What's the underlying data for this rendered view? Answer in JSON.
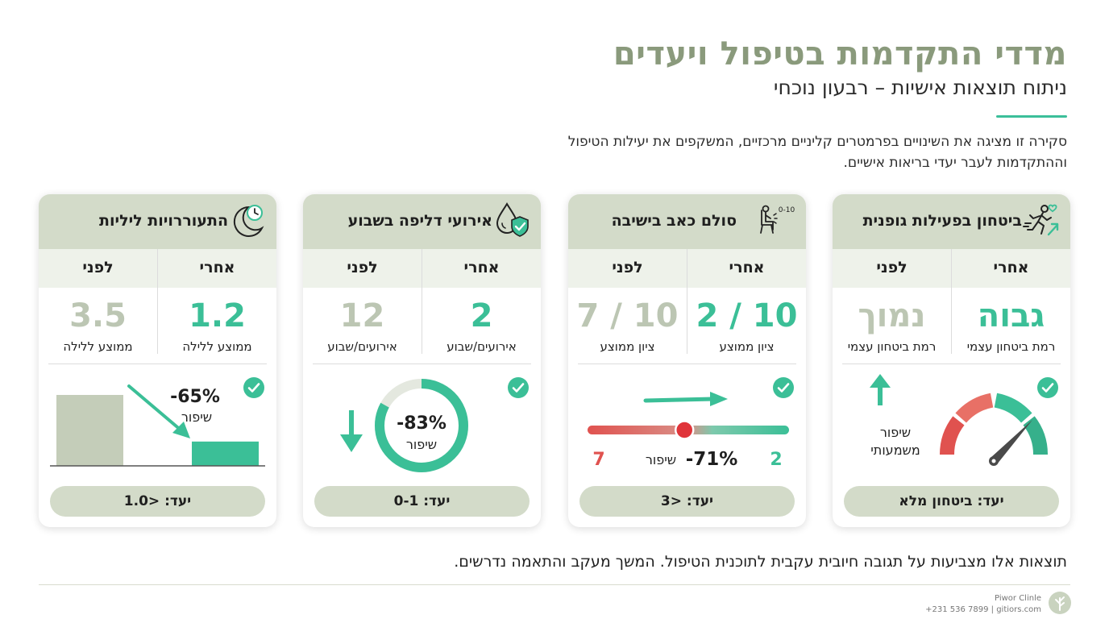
{
  "header": {
    "title": "מדדי התקדמות בטיפול ויעדים",
    "subtitle": "ניתוח תוצאות אישיות – רבעון נוכחי",
    "intro": "סקירה זו מציגה את השינויים בפרמטרים קליניים מרכזיים, המשקפים את יעילות הטיפול וההתקדמות לעבר יעדי בריאות אישיים."
  },
  "colors": {
    "title": "#8a9a7c",
    "accent": "#3cbf9a",
    "card_header": "#d3dbc9",
    "before_value": "#bcc6b3",
    "pain_red": "#e0524f"
  },
  "cards": [
    {
      "title": "ביטחון בפעילות גופנית",
      "icon": "running-person-heart-icon",
      "after_label": "אחרי",
      "before_label": "לפני",
      "after_value": "גבוה",
      "before_value": "נמוך",
      "after_unit": "רמת ביטחון עצמי",
      "before_unit": "רמת ביטחון עצמי",
      "improvement_text": "שיפור משמעותי",
      "gauge_level": 0.8,
      "goal": "יעד: ביטחון מלא"
    },
    {
      "title": "סולם כאב בישיבה",
      "icon": "seated-person-pain-scale-icon",
      "icon_text": "0-10",
      "after_label": "אחרי",
      "before_label": "לפני",
      "after_value": "2 / 10",
      "before_value": "7 / 10",
      "after_unit": "ציון ממוצע",
      "before_unit": "ציון ממוצע",
      "improvement_percent": "-71%",
      "improvement_label": "שיפור",
      "scale_start": "7",
      "scale_end": "2",
      "slider_position": 0.48,
      "goal": "יעד: <3"
    },
    {
      "title": "אירועי דליפה בשבוע",
      "icon": "droplet-shield-icon",
      "after_label": "אחרי",
      "before_label": "לפני",
      "after_value": "2",
      "before_value": "12",
      "after_unit": "אירועים/שבוע",
      "before_unit": "אירועים/שבוע",
      "improvement_percent": "-83%",
      "improvement_label": "שיפור",
      "donut_fill": 0.83,
      "goal": "יעד: 0-1"
    },
    {
      "title": "התעוררויות ליליות",
      "icon": "moon-clock-icon",
      "after_label": "אחרי",
      "before_label": "לפני",
      "after_value": "1.2",
      "before_value": "3.5",
      "after_unit": "ממוצע ללילה",
      "before_unit": "ממוצע ללילה",
      "improvement_percent": "-65%",
      "improvement_label": "שיפור",
      "bar_before": 3.5,
      "bar_after": 1.2,
      "goal": "יעד: <1.0"
    }
  ],
  "footer": {
    "text": "תוצאות אלו מצביעות על תגובה חיובית עקבית לתוכנית הטיפול. המשך מעקב והתאמה נדרשים.",
    "brand_name": "Piwor Clinle",
    "brand_contact": "+231 536 7899 | gitiors.com"
  }
}
